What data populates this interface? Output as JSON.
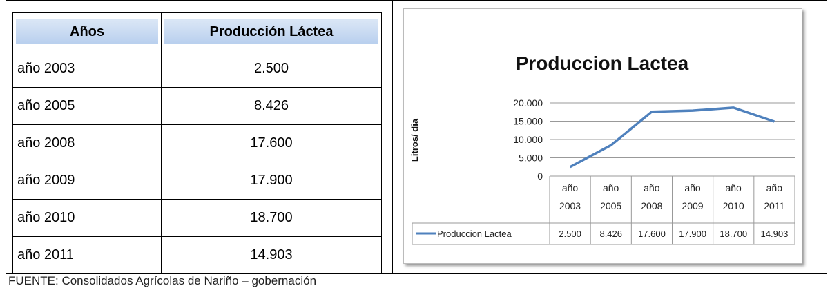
{
  "table": {
    "header": [
      "Años",
      "Producción Láctea"
    ],
    "rows": [
      [
        "año 2003",
        "2.500"
      ],
      [
        "año 2005",
        "8.426"
      ],
      [
        "año 2008",
        "17.600"
      ],
      [
        "año 2009",
        "17.900"
      ],
      [
        "año 2010",
        "18.700"
      ],
      [
        "año 2011",
        "14.903"
      ]
    ]
  },
  "chart_data": {
    "type": "line",
    "title": "Produccion Lactea",
    "y_label": "Litros/ dia",
    "categories": [
      "año 2003",
      "año 2005",
      "año 2008",
      "año 2009",
      "año 2010",
      "año 2011"
    ],
    "series": [
      {
        "name": "Produccion Lactea",
        "color": "#4f81bd",
        "values": [
          2500,
          8426,
          17600,
          17900,
          18700,
          14903
        ],
        "value_labels": [
          "2.500",
          "8.426",
          "17.600",
          "17.900",
          "18.700",
          "14.903"
        ]
      }
    ],
    "ylim": [
      0,
      20000
    ],
    "yticks": [
      0,
      {
        "value": 5000,
        "label": "5.000"
      },
      {
        "value": 10000,
        "label": "10.000"
      },
      {
        "value": 15000,
        "label": "15.000"
      },
      {
        "value": 20000,
        "label": "20.000"
      }
    ],
    "grid": true
  },
  "footer": "FUENTE: Consolidados Agrícolas de Nariño – gobernación"
}
